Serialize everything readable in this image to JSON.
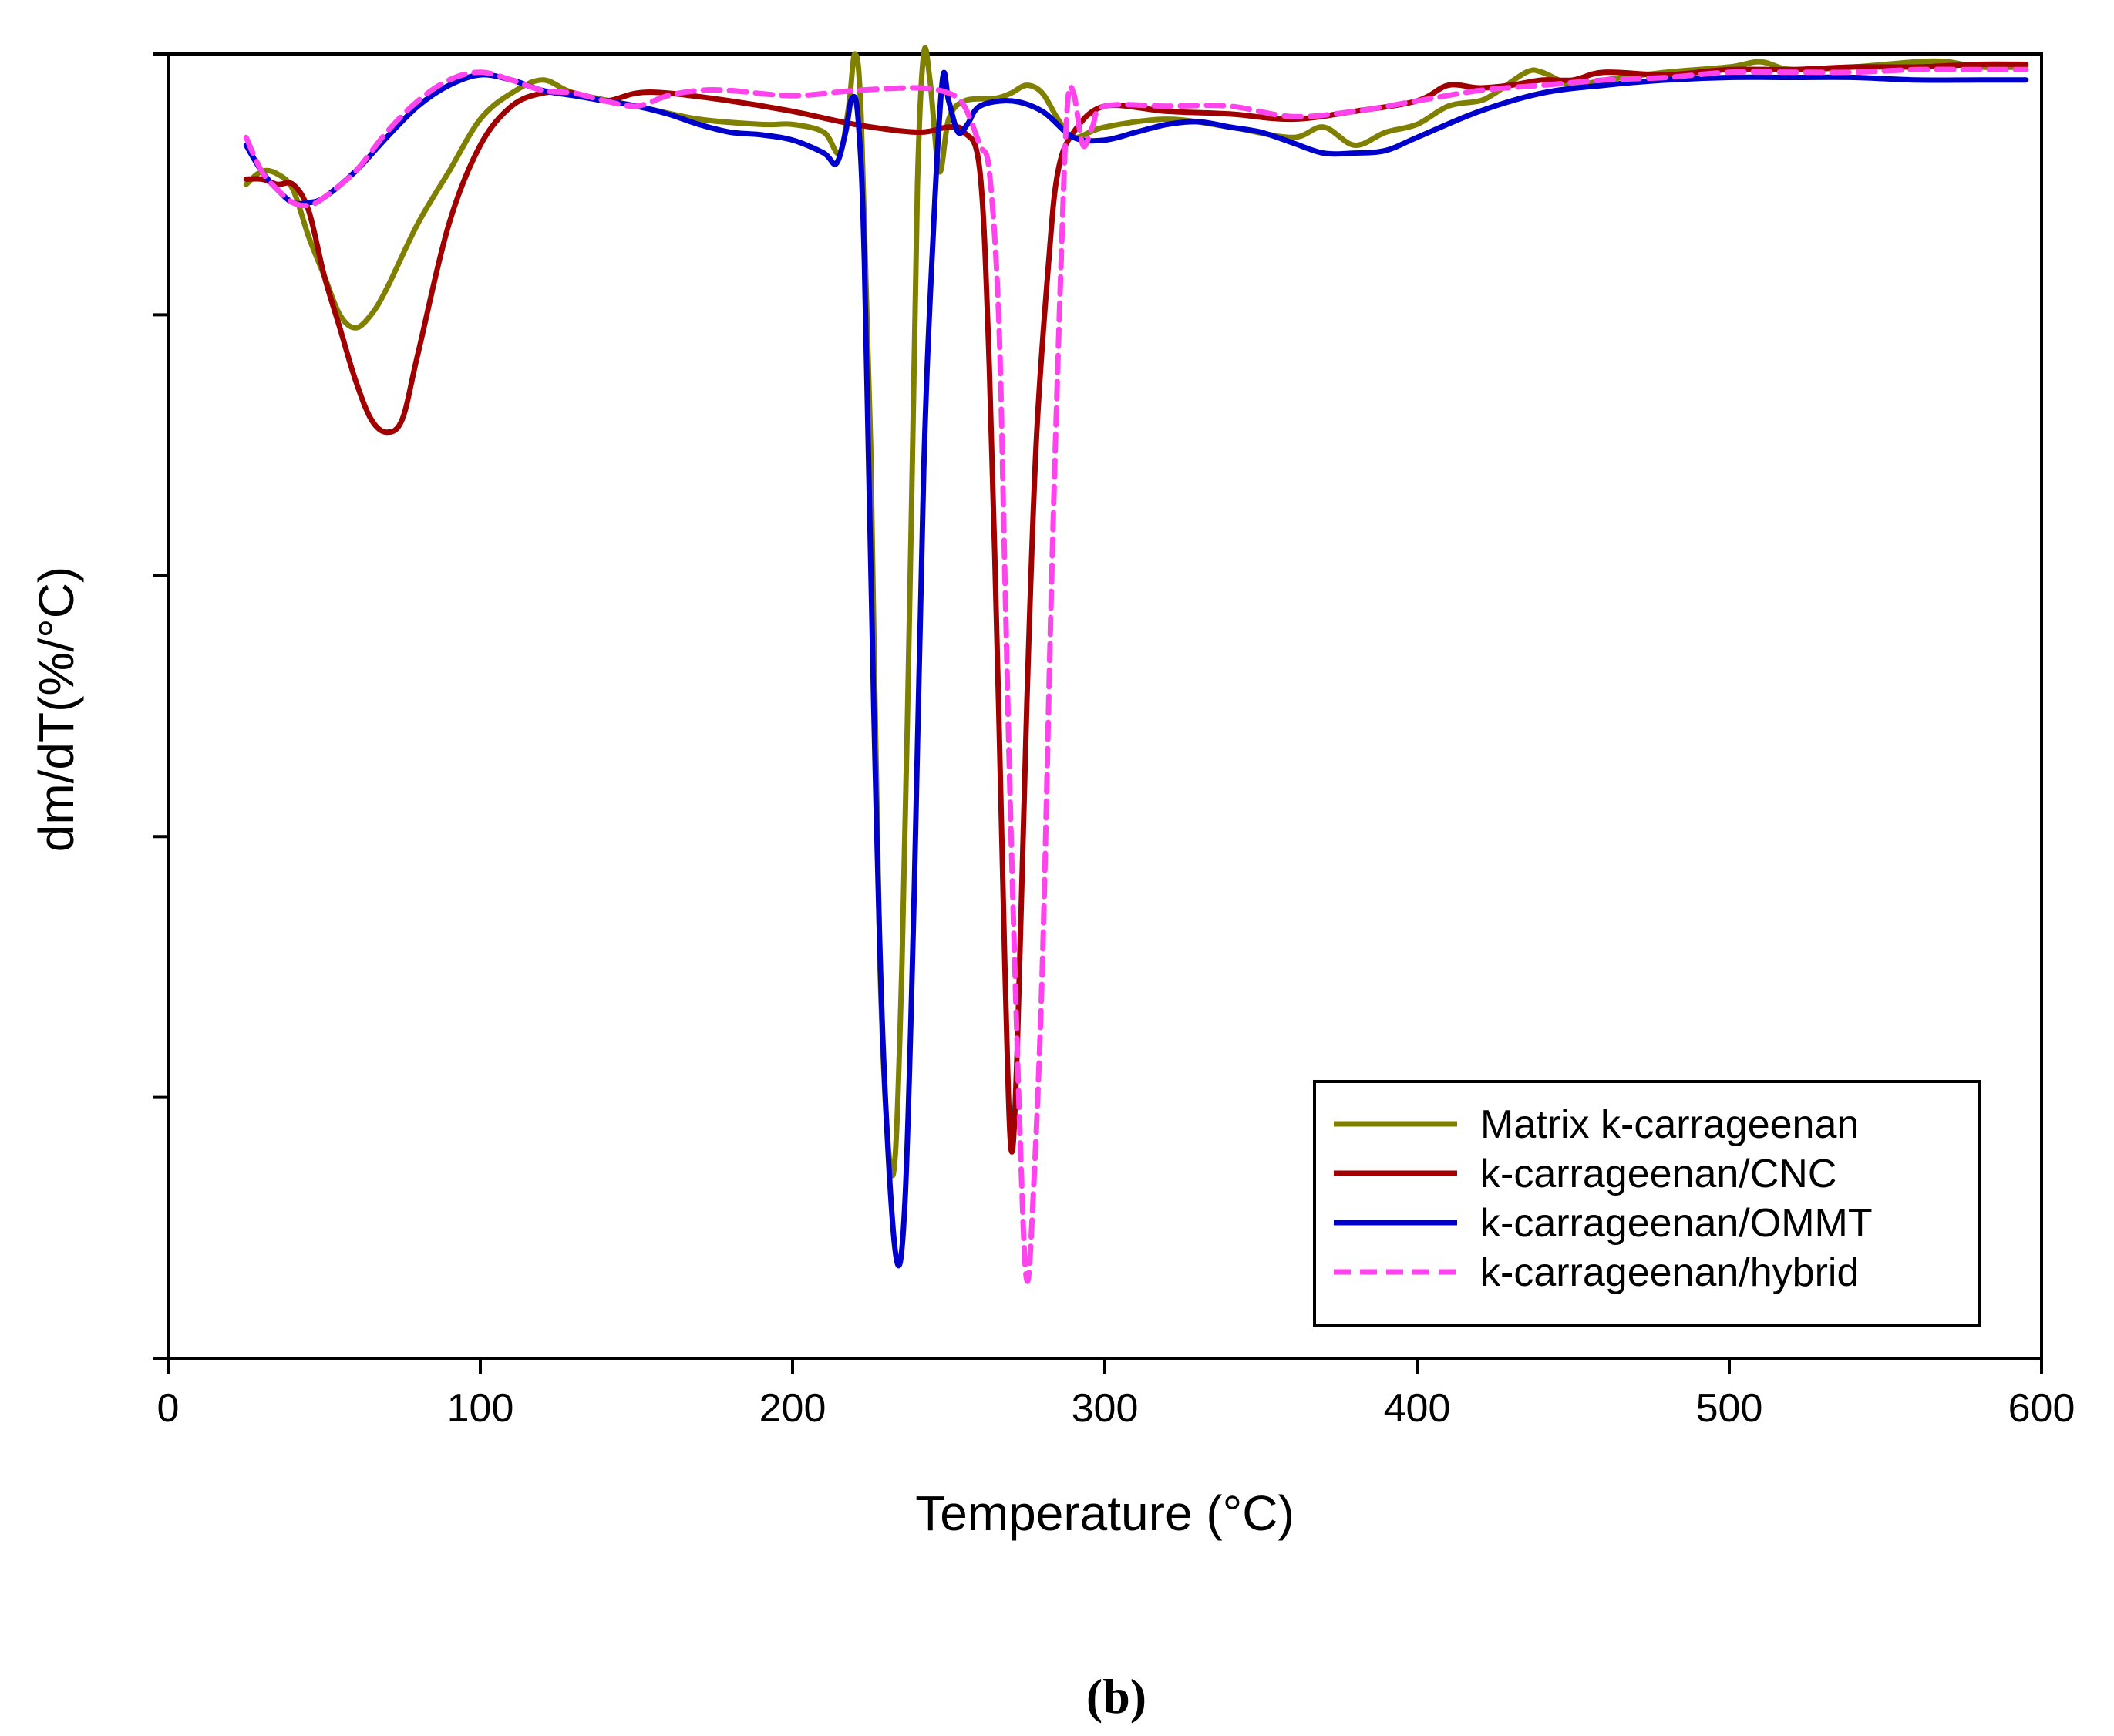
{
  "chart_data": {
    "type": "line",
    "title": "",
    "xlabel": "Temperature (°C)",
    "ylabel": "dm/dT(%/°C)",
    "xlim": [
      0,
      600
    ],
    "ylim": [
      -5.0,
      0.0
    ],
    "x_ticks": [
      "0",
      "100",
      "200",
      "300",
      "400",
      "500",
      "600"
    ],
    "y_ticks_labeled": false,
    "panel_label": "(b)",
    "legend_position": "bottom-right",
    "series": [
      {
        "name": "Matrix k-carrageenan",
        "color": "#808000",
        "dash": "solid",
        "points": [
          [
            25,
            -0.5
          ],
          [
            30,
            -0.45
          ],
          [
            35,
            -0.46
          ],
          [
            40,
            -0.52
          ],
          [
            45,
            -0.7
          ],
          [
            50,
            -0.85
          ],
          [
            55,
            -1.0
          ],
          [
            60,
            -1.05
          ],
          [
            65,
            -1.0
          ],
          [
            70,
            -0.9
          ],
          [
            80,
            -0.65
          ],
          [
            90,
            -0.45
          ],
          [
            100,
            -0.25
          ],
          [
            110,
            -0.15
          ],
          [
            120,
            -0.1
          ],
          [
            130,
            -0.15
          ],
          [
            150,
            -0.2
          ],
          [
            170,
            -0.25
          ],
          [
            190,
            -0.27
          ],
          [
            200,
            -0.27
          ],
          [
            210,
            -0.3
          ],
          [
            215,
            -0.38
          ],
          [
            218,
            -0.2
          ],
          [
            220,
            0.0
          ],
          [
            222,
            -0.25
          ],
          [
            225,
            -1.5
          ],
          [
            228,
            -3.5
          ],
          [
            232,
            -4.3
          ],
          [
            235,
            -3.5
          ],
          [
            238,
            -1.8
          ],
          [
            240,
            -0.5
          ],
          [
            242,
            0.0
          ],
          [
            244,
            -0.1
          ],
          [
            247,
            -0.45
          ],
          [
            250,
            -0.25
          ],
          [
            255,
            -0.18
          ],
          [
            265,
            -0.17
          ],
          [
            270,
            -0.15
          ],
          [
            275,
            -0.12
          ],
          [
            280,
            -0.15
          ],
          [
            285,
            -0.25
          ],
          [
            290,
            -0.32
          ],
          [
            300,
            -0.28
          ],
          [
            320,
            -0.25
          ],
          [
            340,
            -0.28
          ],
          [
            360,
            -0.32
          ],
          [
            370,
            -0.28
          ],
          [
            380,
            -0.35
          ],
          [
            390,
            -0.3
          ],
          [
            400,
            -0.27
          ],
          [
            410,
            -0.2
          ],
          [
            420,
            -0.18
          ],
          [
            425,
            -0.15
          ],
          [
            435,
            -0.07
          ],
          [
            440,
            -0.07
          ],
          [
            450,
            -0.12
          ],
          [
            460,
            -0.1
          ],
          [
            480,
            -0.07
          ],
          [
            500,
            -0.05
          ],
          [
            510,
            -0.03
          ],
          [
            520,
            -0.06
          ],
          [
            540,
            -0.05
          ],
          [
            560,
            -0.03
          ],
          [
            570,
            -0.03
          ],
          [
            580,
            -0.05
          ],
          [
            595,
            -0.05
          ]
        ]
      },
      {
        "name": "k-carrageenan/CNC",
        "color": "#a00000",
        "dash": "solid",
        "points": [
          [
            25,
            -0.48
          ],
          [
            30,
            -0.48
          ],
          [
            35,
            -0.5
          ],
          [
            40,
            -0.5
          ],
          [
            45,
            -0.6
          ],
          [
            50,
            -0.85
          ],
          [
            55,
            -1.05
          ],
          [
            60,
            -1.25
          ],
          [
            65,
            -1.4
          ],
          [
            70,
            -1.45
          ],
          [
            75,
            -1.4
          ],
          [
            80,
            -1.15
          ],
          [
            90,
            -0.65
          ],
          [
            100,
            -0.35
          ],
          [
            110,
            -0.2
          ],
          [
            120,
            -0.15
          ],
          [
            130,
            -0.15
          ],
          [
            140,
            -0.18
          ],
          [
            150,
            -0.15
          ],
          [
            160,
            -0.15
          ],
          [
            180,
            -0.18
          ],
          [
            200,
            -0.22
          ],
          [
            220,
            -0.27
          ],
          [
            240,
            -0.3
          ],
          [
            250,
            -0.28
          ],
          [
            255,
            -0.3
          ],
          [
            260,
            -0.45
          ],
          [
            263,
            -1.2
          ],
          [
            266,
            -2.5
          ],
          [
            268,
            -3.5
          ],
          [
            270,
            -4.2
          ],
          [
            272,
            -3.8
          ],
          [
            275,
            -2.5
          ],
          [
            278,
            -1.5
          ],
          [
            282,
            -0.8
          ],
          [
            285,
            -0.45
          ],
          [
            290,
            -0.3
          ],
          [
            300,
            -0.2
          ],
          [
            320,
            -0.22
          ],
          [
            340,
            -0.23
          ],
          [
            360,
            -0.25
          ],
          [
            380,
            -0.22
          ],
          [
            400,
            -0.18
          ],
          [
            410,
            -0.12
          ],
          [
            420,
            -0.13
          ],
          [
            430,
            -0.12
          ],
          [
            440,
            -0.1
          ],
          [
            450,
            -0.1
          ],
          [
            460,
            -0.07
          ],
          [
            480,
            -0.08
          ],
          [
            500,
            -0.06
          ],
          [
            520,
            -0.06
          ],
          [
            540,
            -0.05
          ],
          [
            560,
            -0.05
          ],
          [
            580,
            -0.04
          ],
          [
            595,
            -0.04
          ]
        ]
      },
      {
        "name": "k-carrageenan/OMMT",
        "color": "#0000cc",
        "dash": "solid",
        "points": [
          [
            25,
            -0.35
          ],
          [
            30,
            -0.45
          ],
          [
            35,
            -0.52
          ],
          [
            40,
            -0.57
          ],
          [
            45,
            -0.57
          ],
          [
            50,
            -0.55
          ],
          [
            60,
            -0.45
          ],
          [
            70,
            -0.32
          ],
          [
            80,
            -0.2
          ],
          [
            90,
            -0.12
          ],
          [
            100,
            -0.08
          ],
          [
            110,
            -0.1
          ],
          [
            120,
            -0.14
          ],
          [
            130,
            -0.16
          ],
          [
            140,
            -0.18
          ],
          [
            150,
            -0.2
          ],
          [
            160,
            -0.23
          ],
          [
            170,
            -0.27
          ],
          [
            180,
            -0.3
          ],
          [
            190,
            -0.31
          ],
          [
            200,
            -0.33
          ],
          [
            210,
            -0.38
          ],
          [
            214,
            -0.42
          ],
          [
            217,
            -0.3
          ],
          [
            219,
            -0.17
          ],
          [
            221,
            -0.25
          ],
          [
            223,
            -0.8
          ],
          [
            226,
            -2.5
          ],
          [
            229,
            -3.8
          ],
          [
            233,
            -4.6
          ],
          [
            236,
            -4.4
          ],
          [
            239,
            -3.2
          ],
          [
            242,
            -1.6
          ],
          [
            245,
            -0.7
          ],
          [
            248,
            -0.1
          ],
          [
            250,
            -0.18
          ],
          [
            253,
            -0.3
          ],
          [
            256,
            -0.27
          ],
          [
            260,
            -0.2
          ],
          [
            270,
            -0.18
          ],
          [
            280,
            -0.22
          ],
          [
            290,
            -0.32
          ],
          [
            300,
            -0.33
          ],
          [
            310,
            -0.3
          ],
          [
            320,
            -0.27
          ],
          [
            330,
            -0.26
          ],
          [
            340,
            -0.28
          ],
          [
            350,
            -0.3
          ],
          [
            360,
            -0.34
          ],
          [
            370,
            -0.38
          ],
          [
            380,
            -0.38
          ],
          [
            390,
            -0.37
          ],
          [
            400,
            -0.32
          ],
          [
            420,
            -0.22
          ],
          [
            440,
            -0.15
          ],
          [
            460,
            -0.12
          ],
          [
            480,
            -0.1
          ],
          [
            500,
            -0.09
          ],
          [
            520,
            -0.09
          ],
          [
            540,
            -0.09
          ],
          [
            560,
            -0.1
          ],
          [
            580,
            -0.1
          ],
          [
            595,
            -0.1
          ]
        ]
      },
      {
        "name": "k-carrageenan/hybrid",
        "color": "#ff44ee",
        "dash": "dashed",
        "points": [
          [
            25,
            -0.32
          ],
          [
            30,
            -0.45
          ],
          [
            35,
            -0.52
          ],
          [
            40,
            -0.57
          ],
          [
            45,
            -0.58
          ],
          [
            50,
            -0.55
          ],
          [
            60,
            -0.45
          ],
          [
            70,
            -0.3
          ],
          [
            80,
            -0.18
          ],
          [
            90,
            -0.1
          ],
          [
            100,
            -0.07
          ],
          [
            110,
            -0.1
          ],
          [
            120,
            -0.14
          ],
          [
            130,
            -0.15
          ],
          [
            140,
            -0.18
          ],
          [
            150,
            -0.2
          ],
          [
            160,
            -0.16
          ],
          [
            170,
            -0.14
          ],
          [
            180,
            -0.14
          ],
          [
            200,
            -0.16
          ],
          [
            220,
            -0.14
          ],
          [
            240,
            -0.13
          ],
          [
            250,
            -0.15
          ],
          [
            255,
            -0.2
          ],
          [
            260,
            -0.35
          ],
          [
            263,
            -0.45
          ],
          [
            266,
            -1.0
          ],
          [
            268,
            -2.0
          ],
          [
            270,
            -3.0
          ],
          [
            273,
            -4.2
          ],
          [
            275,
            -4.7
          ],
          [
            277,
            -4.4
          ],
          [
            280,
            -3.5
          ],
          [
            283,
            -2.0
          ],
          [
            286,
            -0.8
          ],
          [
            288,
            -0.2
          ],
          [
            290,
            -0.15
          ],
          [
            293,
            -0.35
          ],
          [
            296,
            -0.28
          ],
          [
            300,
            -0.2
          ],
          [
            320,
            -0.2
          ],
          [
            340,
            -0.2
          ],
          [
            360,
            -0.24
          ],
          [
            380,
            -0.22
          ],
          [
            400,
            -0.18
          ],
          [
            420,
            -0.14
          ],
          [
            440,
            -0.12
          ],
          [
            460,
            -0.1
          ],
          [
            480,
            -0.09
          ],
          [
            500,
            -0.07
          ],
          [
            520,
            -0.07
          ],
          [
            540,
            -0.07
          ],
          [
            560,
            -0.06
          ],
          [
            580,
            -0.06
          ],
          [
            595,
            -0.06
          ]
        ]
      }
    ]
  }
}
